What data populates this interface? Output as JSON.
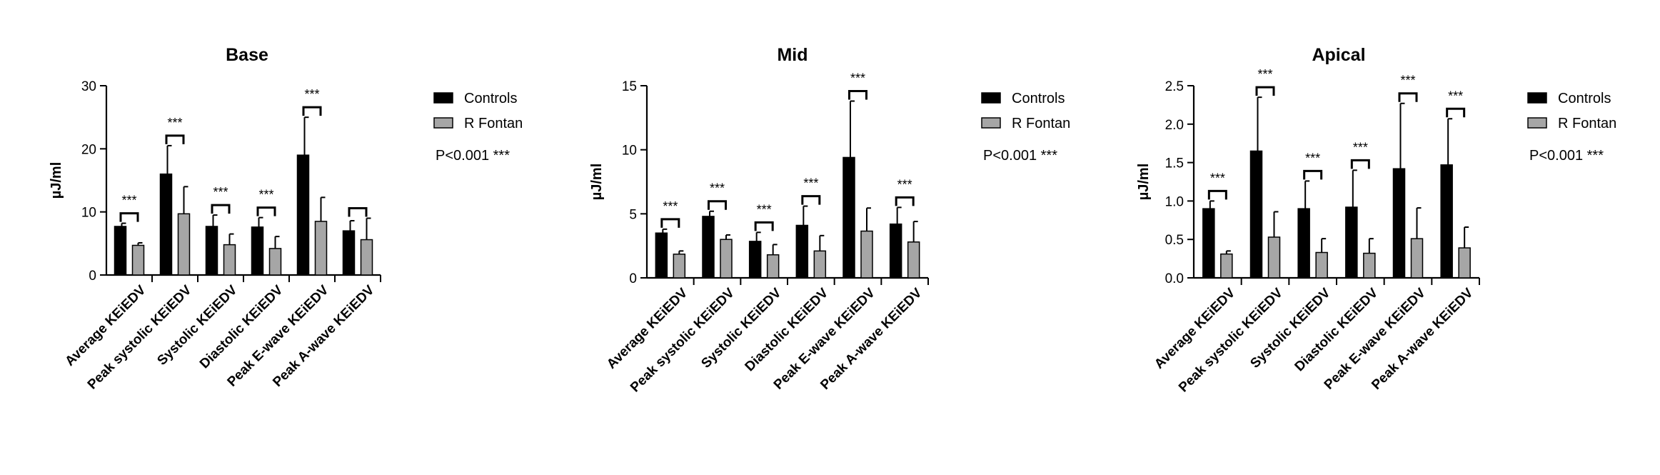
{
  "chart_data": [
    {
      "type": "bar",
      "title": "Base",
      "ylabel": "µJ/ml",
      "ylim": [
        0,
        30
      ],
      "yticks": [
        "0",
        "10",
        "20",
        "30"
      ],
      "categories": [
        "Average KEiEDV",
        "Peak systolic KEiEDV",
        "Systolic KEiEDV",
        "Diastolic KEiEDV",
        "Peak E-wave KEiEDV",
        "Peak A-wave KEiEDV"
      ],
      "series": [
        {
          "name": "Controls",
          "color": "#000000",
          "values": [
            7.7,
            16.0,
            7.7,
            7.6,
            19.0,
            7.0
          ],
          "errors": [
            0.5,
            4.5,
            1.8,
            1.5,
            6.0,
            1.6
          ]
        },
        {
          "name": "R Fontan",
          "color": "#a6a6a6",
          "values": [
            4.7,
            9.7,
            4.8,
            4.2,
            8.5,
            5.6
          ],
          "errors": [
            0.4,
            4.3,
            1.7,
            1.9,
            3.8,
            3.4
          ]
        }
      ],
      "significance": [
        "***",
        "***",
        "***",
        "***",
        "***",
        ""
      ],
      "legend_position": "right",
      "pvalue_text": "P<0.001 ***"
    },
    {
      "type": "bar",
      "title": "Mid",
      "ylabel": "µJ/ml",
      "ylim": [
        0,
        15
      ],
      "yticks": [
        "0",
        "5",
        "10",
        "15"
      ],
      "categories": [
        "Average KEiEDV",
        "Peak systolic KEiEDV",
        "Systolic KEiEDV",
        "Diastolic KEiEDV",
        "Peak E-wave KEiEDV",
        "Peak A-wave KEiEDV"
      ],
      "series": [
        {
          "name": "Controls",
          "color": "#000000",
          "values": [
            3.5,
            4.8,
            2.85,
            4.1,
            9.4,
            4.2
          ],
          "errors": [
            0.3,
            0.4,
            0.7,
            1.5,
            4.4,
            1.3
          ]
        },
        {
          "name": "R Fontan",
          "color": "#a6a6a6",
          "values": [
            1.85,
            3.0,
            1.8,
            2.1,
            3.65,
            2.8
          ],
          "errors": [
            0.25,
            0.35,
            0.8,
            1.2,
            1.8,
            1.6
          ]
        }
      ],
      "significance": [
        "***",
        "***",
        "***",
        "***",
        "***",
        "***"
      ],
      "legend_position": "right",
      "pvalue_text": "P<0.001 ***"
    },
    {
      "type": "bar",
      "title": "Apical",
      "ylabel": "µJ/ml",
      "ylim": [
        0,
        2.5
      ],
      "yticks": [
        "0.0",
        "0.5",
        "1.0",
        "1.5",
        "2.0",
        "2.5"
      ],
      "categories": [
        "Average KEiEDV",
        "Peak systolic KEiEDV",
        "Systolic KEiEDV",
        "Diastolic KEiEDV",
        "Peak E-wave KEiEDV",
        "Peak A-wave KEiEDV"
      ],
      "series": [
        {
          "name": "Controls",
          "color": "#000000",
          "values": [
            0.9,
            1.65,
            0.9,
            0.92,
            1.42,
            1.47
          ],
          "errors": [
            0.1,
            0.7,
            0.36,
            0.48,
            0.85,
            0.6
          ]
        },
        {
          "name": "R Fontan",
          "color": "#a6a6a6",
          "values": [
            0.31,
            0.53,
            0.33,
            0.32,
            0.51,
            0.39
          ],
          "errors": [
            0.04,
            0.33,
            0.18,
            0.19,
            0.4,
            0.27
          ]
        }
      ],
      "significance": [
        "***",
        "***",
        "***",
        "***",
        "***",
        "***"
      ],
      "legend_position": "right",
      "pvalue_text": "P<0.001 ***"
    }
  ]
}
